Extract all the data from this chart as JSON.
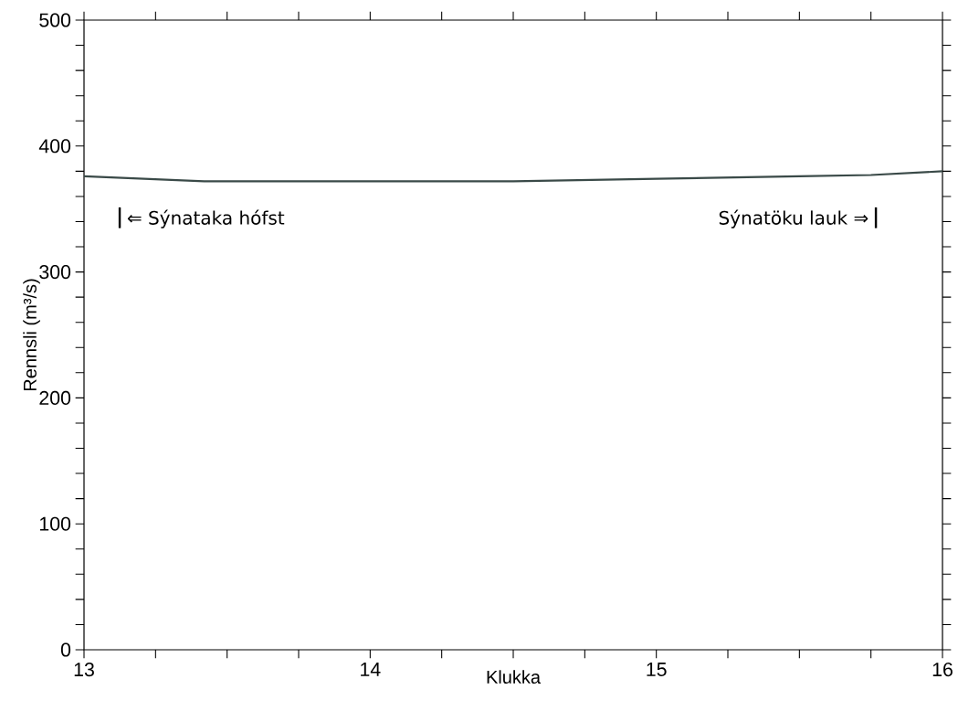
{
  "chart_data": {
    "type": "line",
    "xlabel": "Klukka",
    "ylabel": "Rennsli  (m³/s)",
    "x": [
      13,
      13.42,
      14,
      14.5,
      15,
      15.5,
      15.75,
      16
    ],
    "values": [
      376,
      372,
      372,
      372,
      374,
      376,
      377,
      380
    ],
    "color": "#3a4a48",
    "xlim": [
      13,
      16
    ],
    "ylim": [
      0,
      500
    ],
    "xticks": [
      13,
      14,
      15,
      16
    ],
    "yticks": [
      0,
      100,
      200,
      300,
      400,
      500
    ],
    "grid": false,
    "annotations": [
      "⇐ Sýnataka hófst",
      "Sýnatöku lauk ⇒"
    ]
  }
}
